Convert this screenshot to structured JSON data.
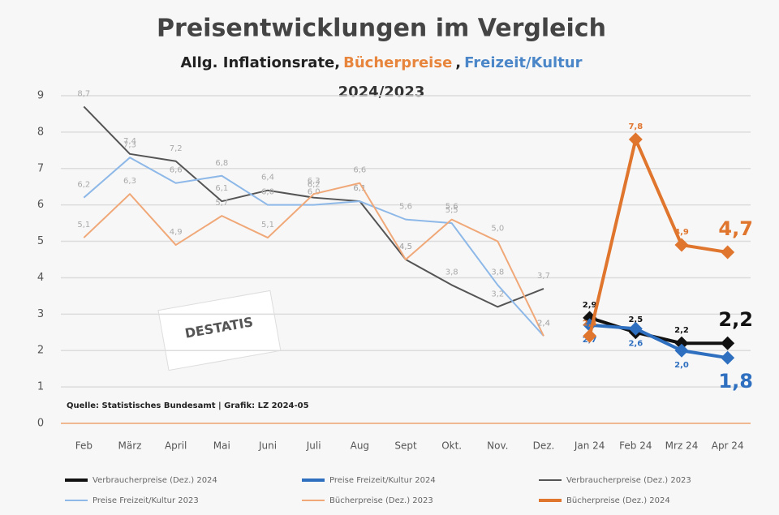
{
  "chart_data": {
    "type": "line",
    "title": "Preisentwicklungen im  Vergleich",
    "subtitle_parts": [
      {
        "text": "Allg. Inflationsrate,",
        "color": "#222222"
      },
      {
        "text": "Bücherpreise",
        "color": "#e8853d"
      },
      {
        "text": ",",
        "color": "#222222"
      },
      {
        "text": "Freizeit/Kultur",
        "color": "#4a86c8"
      }
    ],
    "subtitle2": "2024/2023",
    "source": "Quelle: Statistisches Bundesamt | Grafik: LZ 2024-05",
    "logo": "DESTATIS",
    "categories": [
      "Feb",
      "März",
      "April",
      "Mai",
      "Juni",
      "Juli",
      "Aug",
      "Sept",
      "Okt.",
      "Nov.",
      "Dez.",
      "Jan 24",
      "Feb 24",
      "Mrz 24",
      "Apr 24"
    ],
    "ylim": [
      0,
      9
    ],
    "yticks": [
      0,
      1,
      2,
      3,
      4,
      5,
      6,
      7,
      8,
      9
    ],
    "grid": true,
    "legend": "bottom",
    "series": [
      {
        "name": "Verbraucherpreise (Dez.) 2024",
        "color": "#111111",
        "markers": true,
        "values": [
          null,
          null,
          null,
          null,
          null,
          null,
          null,
          null,
          null,
          null,
          null,
          2.9,
          2.5,
          2.2,
          2.2
        ],
        "value_labels": [
          null,
          null,
          null,
          null,
          null,
          null,
          null,
          null,
          null,
          null,
          null,
          "2,9",
          "2,5",
          "2,2",
          "2,2"
        ]
      },
      {
        "name": "Preise Freizeit/Kultur 2024",
        "color": "#2e6fc0",
        "markers": true,
        "values": [
          null,
          null,
          null,
          null,
          null,
          null,
          null,
          null,
          null,
          null,
          null,
          2.7,
          2.6,
          2.0,
          1.8
        ],
        "value_labels": [
          null,
          null,
          null,
          null,
          null,
          null,
          null,
          null,
          null,
          null,
          null,
          "2,7",
          "2,6",
          "2,0",
          "1,8"
        ]
      },
      {
        "name": "Verbraucherpreise (Dez.) 2023",
        "color": "#555555",
        "markers": false,
        "values": [
          8.7,
          7.4,
          7.2,
          6.1,
          6.4,
          6.2,
          6.1,
          4.5,
          3.8,
          3.2,
          3.7,
          null,
          null,
          null,
          null
        ],
        "value_labels": [
          "8,7",
          "7,4",
          "7,2",
          "6,1",
          "6,4",
          "6,2",
          "6,1",
          "4,5",
          "3,8",
          "3,2",
          "3,7",
          null,
          null,
          null,
          null
        ]
      },
      {
        "name": "Preise Freizeit/Kultur 2023",
        "color": "#8db8e8",
        "markers": false,
        "values": [
          6.2,
          7.3,
          6.6,
          6.8,
          6.0,
          6.0,
          6.1,
          5.6,
          5.5,
          3.8,
          2.4,
          null,
          null,
          null,
          null
        ],
        "value_labels": [
          "6,2",
          "7,3",
          "6,6",
          "6,8",
          "6,0",
          "6,0",
          "6,1",
          "5,6",
          "5,5",
          "3,8",
          "2,4",
          null,
          null,
          null,
          null
        ]
      },
      {
        "name": "Bücherpreise (Dez.) 2023",
        "color": "#f0a878",
        "markers": false,
        "values": [
          5.1,
          6.3,
          4.9,
          5.7,
          5.1,
          6.3,
          6.6,
          4.5,
          5.6,
          5.0,
          2.4,
          null,
          null,
          null,
          null
        ],
        "value_labels": [
          "5,1",
          "6,3",
          "4,9",
          "5,7",
          "5,1",
          "6,3",
          "6,6",
          "4,5",
          "5,6",
          "5,0",
          "2,4",
          null,
          null,
          null,
          null
        ]
      },
      {
        "name": "Bücherpreise (Dez.) 2024",
        "color": "#e0752d",
        "markers": true,
        "values": [
          null,
          null,
          null,
          null,
          null,
          null,
          null,
          null,
          null,
          null,
          null,
          2.4,
          7.8,
          4.9,
          4.7
        ],
        "value_labels": [
          null,
          null,
          null,
          null,
          null,
          null,
          null,
          null,
          null,
          null,
          null,
          "2,4",
          "7,8",
          "4,9",
          "4,7"
        ]
      }
    ]
  }
}
